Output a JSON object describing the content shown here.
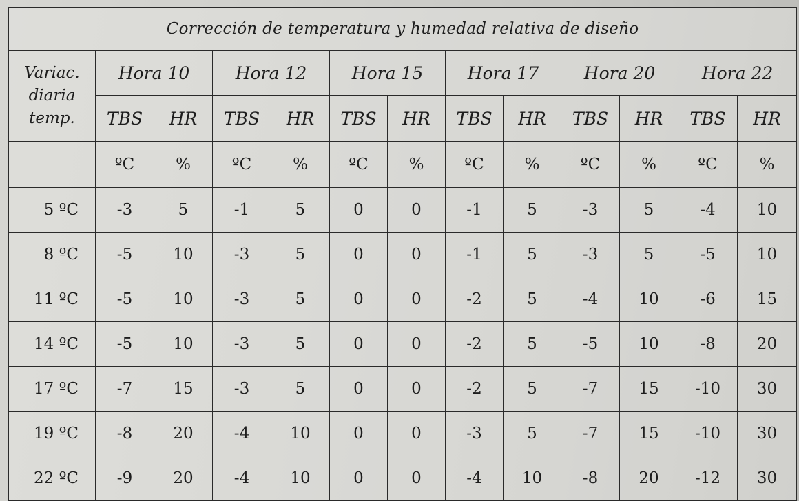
{
  "table": {
    "title": "Corrección de temperatura y humedad relativa de diseño",
    "row_header_lines": [
      "Variac.",
      "diaria",
      "temp."
    ],
    "hours": [
      "Hora 10",
      "Hora 12",
      "Hora 15",
      "Hora 17",
      "Hora 20",
      "Hora 22"
    ],
    "sub_headers": [
      "TBS",
      "HR"
    ],
    "units": [
      "ºC",
      "%"
    ],
    "rows": [
      {
        "label": "5 ºC",
        "values": [
          "-3",
          "5",
          "-1",
          "5",
          "0",
          "0",
          "-1",
          "5",
          "-3",
          "5",
          "-4",
          "10"
        ]
      },
      {
        "label": "8 ºC",
        "values": [
          "-5",
          "10",
          "-3",
          "5",
          "0",
          "0",
          "-1",
          "5",
          "-3",
          "5",
          "-5",
          "10"
        ]
      },
      {
        "label": "11 ºC",
        "values": [
          "-5",
          "10",
          "-3",
          "5",
          "0",
          "0",
          "-2",
          "5",
          "-4",
          "10",
          "-6",
          "15"
        ]
      },
      {
        "label": "14 ºC",
        "values": [
          "-5",
          "10",
          "-3",
          "5",
          "0",
          "0",
          "-2",
          "5",
          "-5",
          "10",
          "-8",
          "20"
        ]
      },
      {
        "label": "17 ºC",
        "values": [
          "-7",
          "15",
          "-3",
          "5",
          "0",
          "0",
          "-2",
          "5",
          "-7",
          "15",
          "-10",
          "30"
        ]
      },
      {
        "label": "19 ºC",
        "values": [
          "-8",
          "20",
          "-4",
          "10",
          "0",
          "0",
          "-3",
          "5",
          "-7",
          "15",
          "-10",
          "30"
        ]
      },
      {
        "label": "22 ºC",
        "values": [
          "-9",
          "20",
          "-4",
          "10",
          "0",
          "0",
          "-4",
          "10",
          "-8",
          "20",
          "-12",
          "30"
        ]
      }
    ]
  }
}
